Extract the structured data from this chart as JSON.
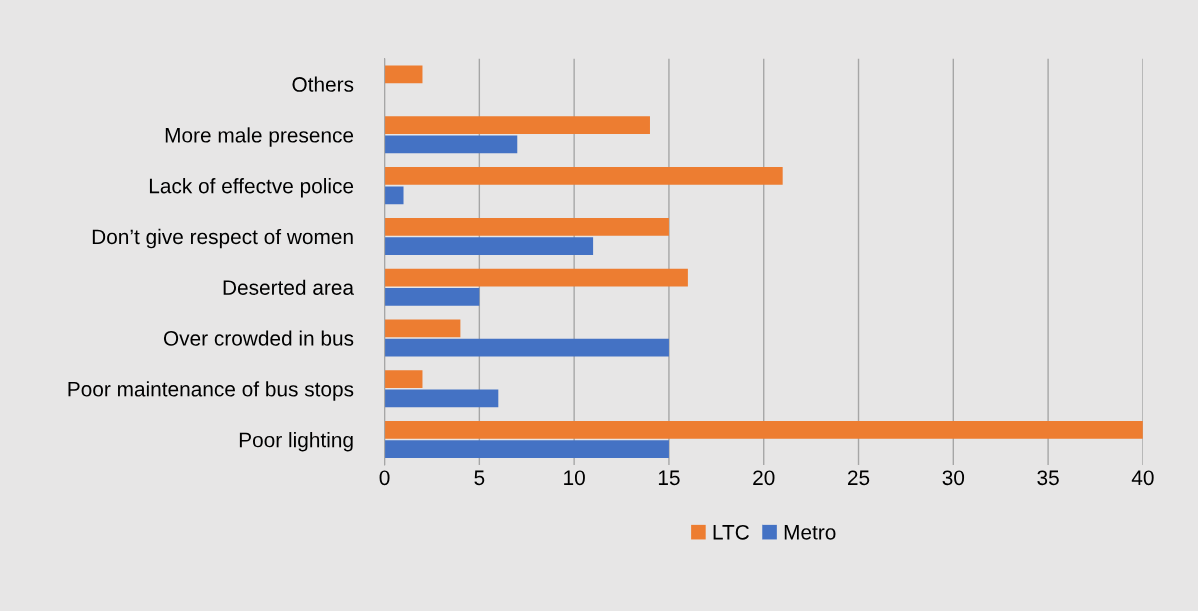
{
  "chart_data": {
    "type": "bar",
    "orientation": "horizontal",
    "categories": [
      "Others",
      "More male presence",
      "Lack of effectve police",
      "Don’t give respect of women",
      "Deserted area",
      "Over crowded in bus",
      "Poor maintenance of bus stops",
      "Poor lighting"
    ],
    "series": [
      {
        "name": "LTC",
        "color": "#ed7d31",
        "values": [
          2,
          14,
          21,
          15,
          16,
          4,
          2,
          40
        ]
      },
      {
        "name": "Metro",
        "color": "#4472c4",
        "values": [
          0,
          7,
          1,
          11,
          5,
          15,
          6,
          15
        ]
      }
    ],
    "xlim": [
      0,
      40
    ],
    "xticks": [
      0,
      5,
      10,
      15,
      20,
      25,
      30,
      35,
      40
    ],
    "grid": "x",
    "legend": "bottom"
  }
}
